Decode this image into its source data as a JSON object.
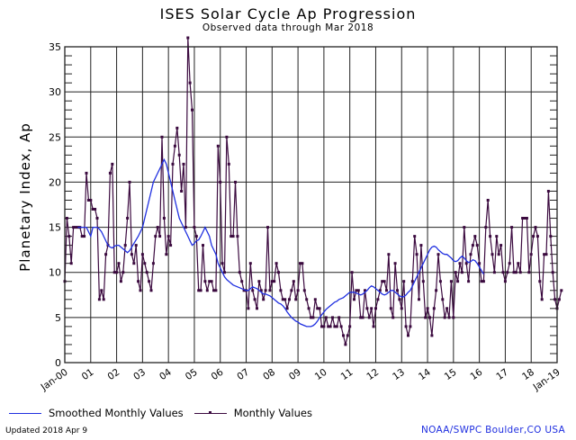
{
  "chart_data": {
    "type": "line",
    "title": "ISES Solar Cycle Ap Progression",
    "subtitle": "Observed data through Mar 2018",
    "xlabel": "",
    "ylabel": "Planetary Index, Ap",
    "ylim": [
      0,
      35
    ],
    "yticks": [
      0,
      5,
      10,
      15,
      20,
      25,
      30,
      35
    ],
    "xlim": [
      "2000-01",
      "2019-01"
    ],
    "xticks": [
      "Jan-00",
      "01",
      "02",
      "03",
      "04",
      "05",
      "06",
      "07",
      "08",
      "09",
      "10",
      "11",
      "12",
      "13",
      "14",
      "15",
      "16",
      "17",
      "18",
      "Jan-19"
    ],
    "grid": true,
    "legend_position": "bottom-left",
    "series": [
      {
        "name": "Smoothed Monthly Values",
        "color": "#1f2fe0",
        "start": "2000-07",
        "values": [
          15,
          15,
          15,
          15,
          15,
          14.5,
          14,
          15,
          15,
          15,
          14.8,
          14.5,
          14,
          13.5,
          13,
          12.8,
          12.7,
          12.9,
          13,
          13,
          12.8,
          12.6,
          12.4,
          12.2,
          12.4,
          12.8,
          13.2,
          13.6,
          14,
          14.5,
          15,
          16,
          17,
          18,
          19,
          20,
          20.5,
          21,
          21.5,
          22,
          22.5,
          22,
          21,
          20,
          19,
          18,
          17,
          16,
          15.5,
          15,
          14.5,
          14,
          13.5,
          13,
          13.2,
          13.5,
          13.6,
          14,
          14.5,
          15,
          14.5,
          14,
          13,
          12.5,
          12,
          11,
          10.5,
          10,
          9.5,
          9.2,
          9,
          8.8,
          8.6,
          8.5,
          8.4,
          8.3,
          8.2,
          8.1,
          8,
          8,
          8.2,
          8.4,
          8.3,
          8.2,
          8,
          7.8,
          7.6,
          7.6,
          7.5,
          7.4,
          7.2,
          7,
          6.8,
          6.6,
          6.5,
          6.3,
          6,
          5.6,
          5.3,
          5,
          4.8,
          4.6,
          4.5,
          4.3,
          4.2,
          4.1,
          4,
          4,
          4,
          4.1,
          4.3,
          4.6,
          5,
          5.3,
          5.6,
          5.9,
          6.1,
          6.3,
          6.5,
          6.7,
          6.8,
          7,
          7.1,
          7.2,
          7.4,
          7.6,
          7.8,
          7.8,
          7.8,
          7.7,
          7.6,
          7.5,
          7.6,
          7.8,
          8,
          8.3,
          8.5,
          8.4,
          8.2,
          8,
          7.8,
          7.6,
          7.5,
          7.6,
          7.8,
          8,
          8,
          7.8,
          7.6,
          7.4,
          7.3,
          7.3,
          7.5,
          7.8,
          8,
          8.5,
          9,
          9.5,
          10,
          10.5,
          11,
          11.5,
          12,
          12.5,
          12.8,
          12.9,
          12.8,
          12.5,
          12.3,
          12.1,
          12,
          12,
          11.8,
          11.6,
          11.3,
          11.2,
          11.3,
          11.6,
          11.8,
          11.6,
          11.3,
          11.1,
          11.2,
          11.4,
          11.3,
          11,
          10.6,
          10.2,
          9.8
        ]
      },
      {
        "name": "Monthly Values",
        "color": "#3b0a3f",
        "start": "2000-01",
        "values": [
          9,
          16,
          14,
          11,
          15,
          15,
          15,
          15,
          14,
          14,
          21,
          18,
          18,
          17,
          17,
          16,
          7,
          8,
          7,
          12,
          13,
          21,
          22,
          10,
          10,
          11,
          9,
          10,
          13,
          16,
          20,
          12,
          11,
          13,
          9,
          8,
          12,
          11,
          10,
          9,
          8,
          11,
          14,
          15,
          14,
          25,
          16,
          12,
          14,
          13,
          22,
          24,
          26,
          23,
          19,
          22,
          15,
          36,
          31,
          28,
          15,
          14,
          8,
          8,
          13,
          9,
          8,
          9,
          9,
          8,
          8,
          24,
          20,
          11,
          10,
          25,
          22,
          14,
          14,
          20,
          14,
          10,
          9,
          8,
          8,
          6,
          11,
          8,
          7,
          6,
          9,
          8,
          7,
          8,
          15,
          8,
          9,
          9,
          11,
          10,
          8,
          7,
          7,
          6,
          7,
          8,
          9,
          7,
          8,
          11,
          11,
          8,
          7,
          6,
          5,
          5,
          7,
          6,
          6,
          4,
          4,
          5,
          4,
          4,
          5,
          4,
          4,
          5,
          4,
          3,
          2,
          3,
          4,
          10,
          7,
          8,
          8,
          5,
          5,
          8,
          6,
          5,
          6,
          4,
          6,
          7,
          8,
          9,
          9,
          8,
          12,
          6,
          5,
          11,
          8,
          7,
          6,
          9,
          4,
          3,
          4,
          9,
          14,
          12,
          7,
          13,
          9,
          5,
          6,
          5,
          3,
          6,
          8,
          12,
          9,
          7,
          5,
          6,
          5,
          9,
          5,
          10,
          9,
          11,
          10,
          15,
          11,
          9,
          12,
          13,
          14,
          13,
          11,
          9,
          9,
          15,
          18,
          14,
          12,
          10,
          14,
          12,
          13,
          10,
          9,
          10,
          11,
          15,
          10,
          10,
          11,
          10,
          16,
          16,
          16,
          10,
          12,
          14,
          15,
          14,
          9,
          7,
          12,
          12,
          19,
          14,
          10,
          7,
          6,
          7,
          8
        ]
      }
    ]
  },
  "legend": {
    "smoothed_label": "Smoothed Monthly Values",
    "monthly_label": "Monthly Values"
  },
  "footer": {
    "updated": "Updated 2018 Apr  9",
    "credit": "NOAA/SWPC Boulder,CO USA"
  }
}
